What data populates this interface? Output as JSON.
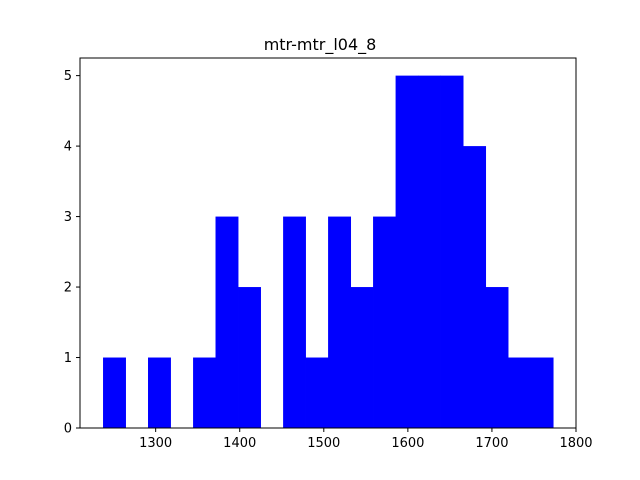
{
  "chart_data": {
    "type": "bar",
    "title": "mtr-mtr_l04_8",
    "xlabel": "",
    "ylabel": "",
    "xlim": [
      1210,
      1800
    ],
    "ylim": [
      0,
      5.25
    ],
    "xticks": [
      1300,
      1400,
      1500,
      1600,
      1700,
      1800
    ],
    "yticks": [
      0,
      1,
      2,
      3,
      4,
      5
    ],
    "bar_color": "#0000ff",
    "grid": false,
    "bins": [
      {
        "x0": 1237.4,
        "x1": 1264.2,
        "count": 1
      },
      {
        "x0": 1264.2,
        "x1": 1290.9,
        "count": 0
      },
      {
        "x0": 1290.9,
        "x1": 1317.7,
        "count": 1
      },
      {
        "x0": 1317.7,
        "x1": 1344.5,
        "count": 0
      },
      {
        "x0": 1344.5,
        "x1": 1371.2,
        "count": 1
      },
      {
        "x0": 1371.2,
        "x1": 1398.0,
        "count": 3
      },
      {
        "x0": 1398.0,
        "x1": 1424.8,
        "count": 2
      },
      {
        "x0": 1424.8,
        "x1": 1451.6,
        "count": 0
      },
      {
        "x0": 1451.6,
        "x1": 1478.3,
        "count": 3
      },
      {
        "x0": 1478.3,
        "x1": 1505.1,
        "count": 1
      },
      {
        "x0": 1505.1,
        "x1": 1531.9,
        "count": 3
      },
      {
        "x0": 1531.9,
        "x1": 1558.6,
        "count": 2
      },
      {
        "x0": 1558.6,
        "x1": 1585.4,
        "count": 3
      },
      {
        "x0": 1585.4,
        "x1": 1612.2,
        "count": 5
      },
      {
        "x0": 1612.2,
        "x1": 1638.9,
        "count": 5
      },
      {
        "x0": 1638.9,
        "x1": 1665.7,
        "count": 5
      },
      {
        "x0": 1665.7,
        "x1": 1692.5,
        "count": 4
      },
      {
        "x0": 1692.5,
        "x1": 1719.2,
        "count": 2
      },
      {
        "x0": 1719.2,
        "x1": 1746.0,
        "count": 1
      },
      {
        "x0": 1746.0,
        "x1": 1772.8,
        "count": 1
      }
    ]
  }
}
